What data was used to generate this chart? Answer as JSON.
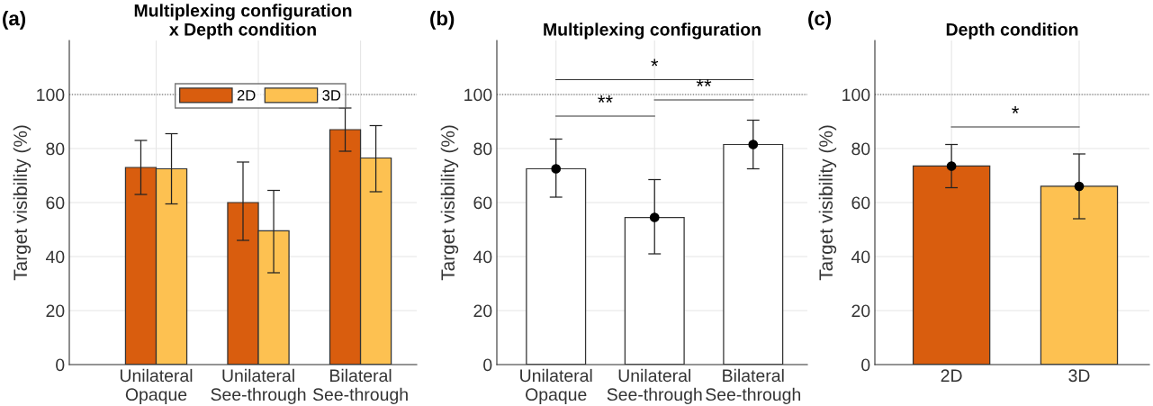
{
  "chart_data": [
    {
      "type": "bar",
      "title": "Multiplexing configuration\nx Depth condition",
      "ylabel": "Target visibility (%)",
      "categories": [
        "Unilateral\nOpaque",
        "Unilateral\nSee-through",
        "Bilateral\nSee-through"
      ],
      "series": [
        {
          "name": "2D",
          "color": "#d95d0e",
          "values": [
            73,
            60,
            87
          ],
          "errors": [
            [
              63,
              83
            ],
            [
              46,
              75
            ],
            [
              79,
              95
            ]
          ]
        },
        {
          "name": "3D",
          "color": "#fdc151",
          "values": [
            72.5,
            49.5,
            76.5
          ],
          "errors": [
            [
              59.5,
              85.5
            ],
            [
              34,
              64.5
            ],
            [
              64,
              88.5
            ]
          ]
        }
      ],
      "ylim": [
        0,
        120
      ],
      "yticks": [
        0,
        20,
        40,
        60,
        80,
        100
      ],
      "grid": true,
      "legend": "top",
      "ref_lines": [
        {
          "axis": "y",
          "value": 100,
          "line_style": "dotted"
        }
      ],
      "annotations": [
        "(a)"
      ]
    },
    {
      "type": "bar",
      "title": "Multiplexing configuration",
      "ylabel": "Target visibility (%)",
      "categories": [
        "Unilateral\nOpaque",
        "Unilateral\nSee-through",
        "Bilateral\nSee-through"
      ],
      "series": [
        {
          "color": "#ffffff",
          "values": [
            72.5,
            54.5,
            81.5
          ],
          "errors": [
            [
              62,
              83.5
            ],
            [
              41,
              68.5
            ],
            [
              72.5,
              90.5
            ]
          ]
        },
        {
          "type": "scatter",
          "color": "#000000",
          "x": [
            "Unilateral\nOpaque",
            "Unilateral\nSee-through",
            "Bilateral\nSee-through"
          ],
          "values": [
            72.5,
            54.5,
            81.5
          ]
        }
      ],
      "ylim": [
        0,
        120
      ],
      "yticks": [
        0,
        20,
        40,
        60,
        80,
        100
      ],
      "grid": true,
      "ref_lines": [
        {
          "axis": "y",
          "value": 100,
          "line_style": "dotted"
        }
      ],
      "annotations": [
        "(b)",
        "*",
        "**",
        "**"
      ]
    },
    {
      "type": "bar",
      "title": "Depth condition",
      "ylabel": "Target visibility (%)",
      "categories": [
        "2D",
        "3D"
      ],
      "series": [
        {
          "colors": [
            "#d95d0e",
            "#fdc151"
          ],
          "values": [
            73.5,
            66
          ],
          "errors": [
            [
              65.5,
              81.5
            ],
            [
              54,
              78
            ]
          ]
        },
        {
          "type": "scatter",
          "color": "#000000",
          "x": [
            "2D",
            "3D"
          ],
          "values": [
            73.5,
            66
          ]
        }
      ],
      "ylim": [
        0,
        120
      ],
      "yticks": [
        0,
        20,
        40,
        60,
        80,
        100
      ],
      "grid": true,
      "ref_lines": [
        {
          "axis": "y",
          "value": 100,
          "line_style": "dotted"
        }
      ],
      "annotations": [
        "(c)",
        "*"
      ]
    }
  ]
}
